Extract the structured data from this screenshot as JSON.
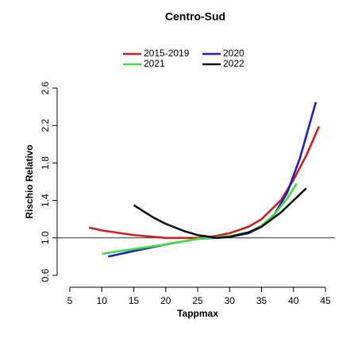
{
  "chart_data": {
    "type": "line",
    "title": "Centro-Sud",
    "xlabel": "Tappmax",
    "ylabel": "Rischio Relativo",
    "xlim": [
      5,
      45
    ],
    "ylim": [
      0.6,
      2.6
    ],
    "xticks": [
      5,
      10,
      15,
      20,
      25,
      30,
      35,
      40,
      45
    ],
    "yticks": [
      0.6,
      {
        "value": 1,
        "label": "1.0"
      },
      1.4,
      1.8,
      2.2,
      2.6
    ],
    "hline": 1,
    "grid": false,
    "legend": "top",
    "series": [
      {
        "name": "2015-2019",
        "color": "#cc2020",
        "x": [
          8,
          10,
          15,
          20,
          25,
          27,
          30,
          33,
          35,
          38,
          40,
          42,
          44
        ],
        "values": [
          1.11,
          1.08,
          1.03,
          1.0,
          1.0,
          1.01,
          1.05,
          1.12,
          1.2,
          1.4,
          1.62,
          1.88,
          2.19
        ]
      },
      {
        "name": "2020",
        "color": "#2020c0",
        "x": [
          11,
          15,
          20,
          25,
          30,
          33,
          35,
          37,
          39,
          41,
          43.5
        ],
        "values": [
          0.8,
          0.86,
          0.93,
          0.99,
          1.01,
          1.05,
          1.12,
          1.25,
          1.48,
          1.85,
          2.45
        ]
      },
      {
        "name": "2021",
        "color": "#40dd40",
        "x": [
          10,
          15,
          20,
          25,
          30,
          33,
          35,
          37,
          39,
          40.5
        ],
        "values": [
          0.83,
          0.88,
          0.93,
          0.99,
          1.02,
          1.06,
          1.13,
          1.25,
          1.42,
          1.58
        ]
      },
      {
        "name": "2022",
        "color": "#111111",
        "x": [
          15,
          18,
          20,
          23,
          25,
          28,
          30,
          33,
          35,
          38,
          42
        ],
        "values": [
          1.35,
          1.22,
          1.15,
          1.07,
          1.03,
          1.0,
          1.01,
          1.06,
          1.12,
          1.27,
          1.53
        ]
      }
    ]
  }
}
